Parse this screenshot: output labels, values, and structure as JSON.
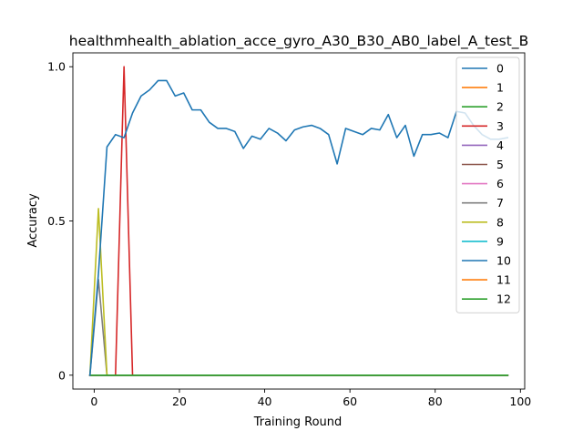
{
  "chart_data": {
    "type": "line",
    "title": "healthmhealth_ablation_acce_gyro_A30_B30_AB0_label_A_test_B",
    "xlabel": "Training Round",
    "ylabel": "Accuracy",
    "xlim": [
      -5,
      101
    ],
    "ylim": [
      -0.045,
      1.045
    ],
    "xticks": [
      0,
      20,
      40,
      60,
      80,
      100
    ],
    "xtick_labels": [
      "0",
      "20",
      "40",
      "60",
      "80",
      "100"
    ],
    "yticks": [
      0,
      0.5,
      1.0
    ],
    "ytick_labels": [
      "0",
      "0.5",
      "1.0"
    ],
    "grid": false,
    "legend_position": "top-right",
    "series": [
      {
        "name": "0",
        "color": "#1f77b4",
        "x": [
          -1,
          1,
          3,
          5,
          7,
          9,
          11,
          13,
          15,
          17,
          19,
          21,
          23,
          25,
          27,
          29,
          31,
          33,
          35,
          37,
          39,
          41,
          43,
          45,
          47,
          49,
          51,
          53,
          55,
          57,
          59,
          61,
          63,
          65,
          67,
          69,
          71,
          73,
          75,
          77,
          79,
          81,
          83,
          85,
          87,
          89,
          91,
          93,
          95,
          97
        ],
        "y": [
          0,
          0.33,
          0.74,
          0.78,
          0.77,
          0.85,
          0.905,
          0.925,
          0.955,
          0.955,
          0.905,
          0.915,
          0.86,
          0.86,
          0.82,
          0.8,
          0.8,
          0.79,
          0.735,
          0.775,
          0.765,
          0.8,
          0.785,
          0.76,
          0.795,
          0.805,
          0.81,
          0.8,
          0.78,
          0.685,
          0.8,
          0.79,
          0.78,
          0.8,
          0.795,
          0.845,
          0.77,
          0.81,
          0.71,
          0.78,
          0.78,
          0.785,
          0.77,
          0.855,
          0.85,
          0.81,
          0.78,
          0.765,
          0.765,
          0.77
        ]
      },
      {
        "name": "1",
        "color": "#ff7f0e",
        "x": [
          -1,
          97
        ],
        "y": [
          0,
          0
        ]
      },
      {
        "name": "2",
        "color": "#2ca02c",
        "x": [
          -1,
          97
        ],
        "y": [
          0,
          0
        ]
      },
      {
        "name": "3",
        "color": "#d62728",
        "x": [
          -1,
          1,
          3,
          5,
          7,
          9,
          11,
          97
        ],
        "y": [
          0,
          0,
          0,
          0,
          1.0,
          0,
          0,
          0
        ]
      },
      {
        "name": "4",
        "color": "#9467bd",
        "x": [
          -1,
          97
        ],
        "y": [
          0,
          0
        ]
      },
      {
        "name": "5",
        "color": "#8c564b",
        "x": [
          -1,
          97
        ],
        "y": [
          0,
          0
        ]
      },
      {
        "name": "6",
        "color": "#e377c2",
        "x": [
          -1,
          97
        ],
        "y": [
          0,
          0
        ]
      },
      {
        "name": "7",
        "color": "#7f7f7f",
        "x": [
          -1,
          1,
          3,
          5,
          97
        ],
        "y": [
          0,
          0.31,
          0,
          0,
          0
        ]
      },
      {
        "name": "8",
        "color": "#bcbd22",
        "x": [
          -1,
          1,
          3,
          5,
          97
        ],
        "y": [
          0,
          0.54,
          0,
          0,
          0
        ]
      },
      {
        "name": "9",
        "color": "#17becf",
        "x": [
          -1,
          97
        ],
        "y": [
          0,
          0
        ]
      },
      {
        "name": "10",
        "color": "#1f77b4",
        "x": [
          -1,
          97
        ],
        "y": [
          0,
          0
        ]
      },
      {
        "name": "11",
        "color": "#ff7f0e",
        "x": [
          -1,
          97
        ],
        "y": [
          0,
          0
        ]
      },
      {
        "name": "12",
        "color": "#2ca02c",
        "x": [
          -1,
          97
        ],
        "y": [
          0,
          0
        ]
      }
    ]
  }
}
